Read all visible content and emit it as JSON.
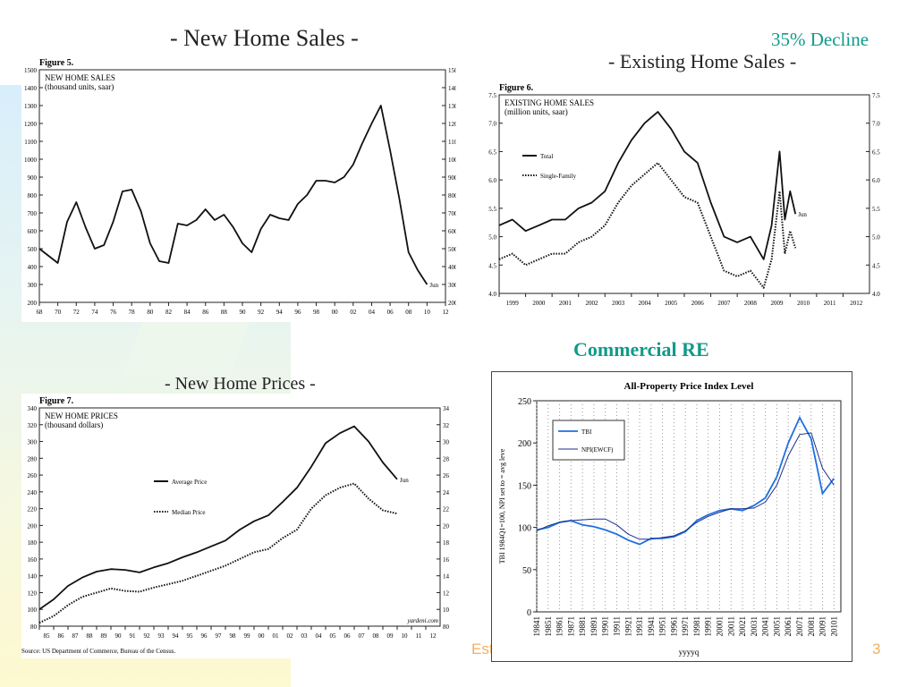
{
  "slide": {
    "title_new_sales": "- New Home Sales -",
    "title_existing": "- Existing Home Sales -",
    "title_prices": "- New Home Prices -",
    "callout_decline": "35% Decline",
    "title_commercial": "Commercial RE",
    "footer_partial": "Est",
    "page_number": "3",
    "accent_color": "#119a8a"
  },
  "chart_data": [
    {
      "type": "line",
      "figure_label": "Figure 5.",
      "title": "NEW HOME SALES",
      "subtitle": "(thousand units, saar)",
      "x_ticks": [
        "68",
        "70",
        "72",
        "74",
        "76",
        "78",
        "80",
        "82",
        "84",
        "86",
        "88",
        "90",
        "92",
        "94",
        "96",
        "98",
        "00",
        "02",
        "04",
        "06",
        "08",
        "10",
        "12"
      ],
      "y_ticks": [
        200,
        300,
        400,
        500,
        600,
        700,
        800,
        900,
        1000,
        1100,
        1200,
        1300,
        1400,
        1500
      ],
      "ylim": [
        200,
        1500
      ],
      "xlim": [
        1968,
        2012
      ],
      "end_label": "Jun",
      "series": [
        {
          "x": [
            1968,
            1969,
            1970,
            1971,
            1972,
            1973,
            1974,
            1975,
            1976,
            1977,
            1978,
            1979,
            1980,
            1981,
            1982,
            1983,
            1984,
            1985,
            1986,
            1987,
            1988,
            1989,
            1990,
            1991,
            1992,
            1993,
            1994,
            1995,
            1996,
            1997,
            1998,
            1999,
            2000,
            2001,
            2002,
            2003,
            2004,
            2005,
            2006,
            2007,
            2008,
            2009,
            2010
          ],
          "y": [
            500,
            460,
            420,
            650,
            760,
            620,
            500,
            520,
            650,
            820,
            830,
            710,
            530,
            430,
            420,
            640,
            630,
            660,
            720,
            660,
            690,
            620,
            530,
            480,
            610,
            690,
            670,
            660,
            750,
            800,
            880,
            880,
            870,
            900,
            970,
            1090,
            1200,
            1300,
            1050,
            780,
            480,
            380,
            300
          ]
        }
      ]
    },
    {
      "type": "line",
      "figure_label": "Figure 6.",
      "title": "EXISTING HOME SALES",
      "subtitle": "(million units, saar)",
      "x_ticks": [
        "1999",
        "2000",
        "2001",
        "2002",
        "2003",
        "2004",
        "2005",
        "2006",
        "2007",
        "2008",
        "2009",
        "2010",
        "2011",
        "2012"
      ],
      "y_ticks": [
        4.0,
        4.5,
        5.0,
        5.5,
        6.0,
        6.5,
        7.0,
        7.5
      ],
      "ylim": [
        4.0,
        7.5
      ],
      "xlim": [
        1999,
        2013
      ],
      "end_label": "Jun",
      "series": [
        {
          "name": "Total",
          "x": [
            1999,
            1999.5,
            2000,
            2000.5,
            2001,
            2001.5,
            2002,
            2002.5,
            2003,
            2003.5,
            2004,
            2004.5,
            2005,
            2005.5,
            2006,
            2006.5,
            2007,
            2007.5,
            2008,
            2008.5,
            2009,
            2009.3,
            2009.6,
            2009.8,
            2010,
            2010.2
          ],
          "y": [
            5.2,
            5.3,
            5.1,
            5.2,
            5.3,
            5.3,
            5.5,
            5.6,
            5.8,
            6.3,
            6.7,
            7.0,
            7.2,
            6.9,
            6.5,
            6.3,
            5.6,
            5.0,
            4.9,
            5.0,
            4.6,
            5.2,
            6.5,
            5.3,
            5.8,
            5.4
          ]
        },
        {
          "name": "Single-Family",
          "x": [
            1999,
            1999.5,
            2000,
            2000.5,
            2001,
            2001.5,
            2002,
            2002.5,
            2003,
            2003.5,
            2004,
            2004.5,
            2005,
            2005.5,
            2006,
            2006.5,
            2007,
            2007.5,
            2008,
            2008.5,
            2009,
            2009.3,
            2009.6,
            2009.8,
            2010,
            2010.2
          ],
          "y": [
            4.6,
            4.7,
            4.5,
            4.6,
            4.7,
            4.7,
            4.9,
            5.0,
            5.2,
            5.6,
            5.9,
            6.1,
            6.3,
            6.0,
            5.7,
            5.6,
            5.0,
            4.4,
            4.3,
            4.4,
            4.1,
            4.6,
            5.8,
            4.7,
            5.1,
            4.8
          ]
        }
      ]
    },
    {
      "type": "line",
      "figure_label": "Figure 7.",
      "title": "NEW HOME PRICES",
      "subtitle": "(thousand dollars)",
      "x_ticks": [
        "85",
        "86",
        "87",
        "88",
        "89",
        "90",
        "91",
        "92",
        "93",
        "94",
        "95",
        "96",
        "97",
        "98",
        "99",
        "00",
        "01",
        "02",
        "03",
        "04",
        "05",
        "06",
        "07",
        "08",
        "09",
        "10",
        "11",
        "12"
      ],
      "y_ticks": [
        80,
        100,
        120,
        140,
        160,
        180,
        200,
        220,
        240,
        260,
        280,
        300,
        320,
        340
      ],
      "ylim": [
        80,
        340
      ],
      "xlim": [
        1985,
        2013
      ],
      "end_label": "Jun",
      "source": "Source: US Department of Commerce, Bureau of the Census.",
      "credit": "yardeni.com",
      "series": [
        {
          "name": "Average Price",
          "x": [
            1985,
            1986,
            1987,
            1988,
            1989,
            1990,
            1991,
            1992,
            1993,
            1994,
            1995,
            1996,
            1997,
            1998,
            1999,
            2000,
            2001,
            2002,
            2003,
            2004,
            2005,
            2006,
            2007,
            2008,
            2009,
            2010
          ],
          "y": [
            100,
            112,
            128,
            138,
            145,
            148,
            147,
            144,
            150,
            155,
            162,
            168,
            175,
            182,
            195,
            205,
            212,
            228,
            245,
            270,
            298,
            310,
            318,
            300,
            275,
            255
          ]
        },
        {
          "name": "Median Price",
          "x": [
            1985,
            1986,
            1987,
            1988,
            1989,
            1990,
            1991,
            1992,
            1993,
            1994,
            1995,
            1996,
            1997,
            1998,
            1999,
            2000,
            2001,
            2002,
            2003,
            2004,
            2005,
            2006,
            2007,
            2008,
            2009,
            2010
          ],
          "y": [
            84,
            92,
            105,
            115,
            120,
            125,
            122,
            121,
            126,
            130,
            134,
            140,
            146,
            152,
            160,
            168,
            172,
            185,
            195,
            220,
            236,
            245,
            250,
            232,
            218,
            214
          ]
        }
      ]
    },
    {
      "type": "line",
      "title": "All-Property Price Index Level",
      "ylabel": "TBI 1984Q1=100, NPI set to = avg leve",
      "xlabel": "yyyyq",
      "x_ticks": [
        "19841",
        "19851",
        "19861",
        "19871",
        "19881",
        "19891",
        "19901",
        "19911",
        "19921",
        "19931",
        "19941",
        "19951",
        "19961",
        "19971",
        "19981",
        "19991",
        "20001",
        "20011",
        "20021",
        "20031",
        "20041",
        "20051",
        "20061",
        "20071",
        "20081",
        "20091",
        "20101"
      ],
      "y_ticks": [
        0,
        50,
        100,
        150,
        200,
        250
      ],
      "ylim": [
        0,
        250
      ],
      "legend": "top-left",
      "series": [
        {
          "name": "TBI",
          "color": "#1f6fe0",
          "x": [
            1984,
            1985,
            1986,
            1987,
            1988,
            1989,
            1990,
            1991,
            1992,
            1993,
            1994,
            1995,
            1996,
            1997,
            1998,
            1999,
            2000,
            2001,
            2002,
            2003,
            2004,
            2005,
            2006,
            2007,
            2008,
            2009,
            2010
          ],
          "y": [
            97,
            100,
            106,
            108,
            103,
            101,
            97,
            92,
            85,
            80,
            87,
            87,
            89,
            95,
            108,
            115,
            120,
            122,
            120,
            126,
            135,
            160,
            200,
            230,
            205,
            140,
            158
          ]
        },
        {
          "name": "NPI(EWCF)",
          "color": "#1a2f8a",
          "x": [
            1984,
            1985,
            1986,
            1987,
            1988,
            1989,
            1990,
            1991,
            1992,
            1993,
            1994,
            1995,
            1996,
            1997,
            1998,
            1999,
            2000,
            2001,
            2002,
            2003,
            2004,
            2005,
            2006,
            2007,
            2008,
            2009,
            2010
          ],
          "y": [
            96,
            102,
            106,
            108,
            109,
            110,
            110,
            103,
            92,
            86,
            86,
            88,
            90,
            96,
            106,
            113,
            118,
            122,
            122,
            123,
            130,
            150,
            185,
            210,
            212,
            170,
            150
          ]
        }
      ]
    }
  ]
}
